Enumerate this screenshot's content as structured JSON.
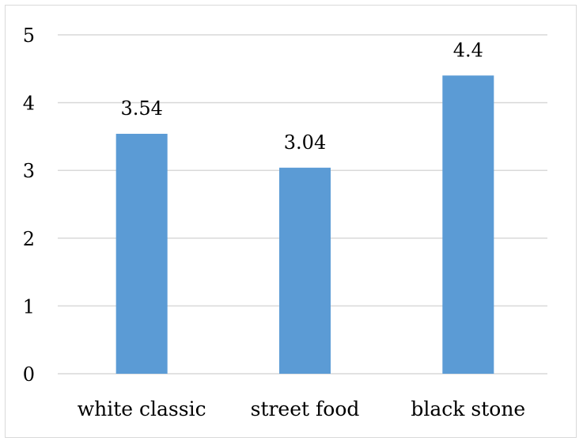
{
  "chart_data": {
    "type": "bar",
    "title": "",
    "xlabel": "",
    "ylabel": "",
    "categories": [
      "white classic",
      "street food",
      "black stone"
    ],
    "values": [
      3.54,
      3.04,
      4.4
    ],
    "data_labels": [
      "3.54",
      "3.04",
      "4.4"
    ],
    "y_ticks": [
      "0",
      "1",
      "2",
      "3",
      "4",
      "5"
    ],
    "ylim": [
      0,
      5
    ],
    "grid": true,
    "legend": "none",
    "bar_color": "#5b9bd5",
    "grid_color": "#d9d9d9"
  }
}
